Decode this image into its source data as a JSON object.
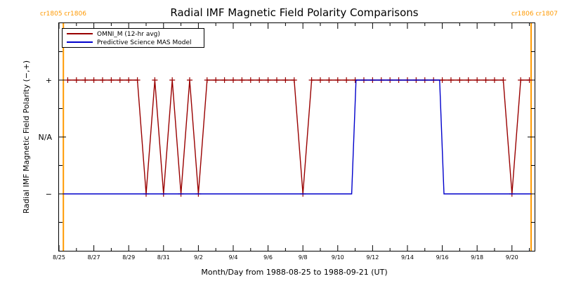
{
  "chart_data": {
    "type": "line",
    "title": "Radial IMF Magnetic Field Polarity Comparisons",
    "xlabel": "Month/Day from 1988-08-25 to 1988-09-21 (UT)",
    "ylabel": "Radial IMF Magnetic Field Polarity (−,+)",
    "x_tick_labels": [
      "8/25",
      "8/27",
      "8/29",
      "8/31",
      "9/2",
      "9/4",
      "9/6",
      "9/8",
      "9/10",
      "9/12",
      "9/14",
      "9/16",
      "9/18",
      "9/20"
    ],
    "x_tick_days": [
      0,
      2,
      4,
      6,
      8,
      10,
      12,
      14,
      16,
      18,
      20,
      22,
      24,
      26
    ],
    "x_range_days": [
      0,
      27.3
    ],
    "y_tick_labels": [
      "+",
      "N/A",
      "−"
    ],
    "y_tick_values": [
      1,
      0,
      -1
    ],
    "ylim": [
      -2,
      2
    ],
    "carrington_markers": [
      {
        "label": "cr1805 cr1806",
        "day": 0.25,
        "side": "left"
      },
      {
        "label": "cr1806 cr1807",
        "day": 27.1,
        "side": "right"
      }
    ],
    "marker_color": "#ff9900",
    "series": [
      {
        "name": "OMNI_M (12-hr avg)",
        "color": "#990000",
        "marker": "+",
        "points": [
          [
            0.5,
            1
          ],
          [
            1.0,
            1
          ],
          [
            1.5,
            1
          ],
          [
            2.0,
            1
          ],
          [
            2.5,
            1
          ],
          [
            3.0,
            1
          ],
          [
            3.5,
            1
          ],
          [
            4.0,
            1
          ],
          [
            4.5,
            1
          ],
          [
            5.0,
            -1
          ],
          [
            5.5,
            1
          ],
          [
            6.0,
            -1
          ],
          [
            6.5,
            1
          ],
          [
            7.0,
            -1
          ],
          [
            7.5,
            1
          ],
          [
            8.0,
            -1
          ],
          [
            8.5,
            1
          ],
          [
            9.0,
            1
          ],
          [
            9.5,
            1
          ],
          [
            10.0,
            1
          ],
          [
            10.5,
            1
          ],
          [
            11.0,
            1
          ],
          [
            11.5,
            1
          ],
          [
            12.0,
            1
          ],
          [
            12.5,
            1
          ],
          [
            13.0,
            1
          ],
          [
            13.5,
            1
          ],
          [
            14.0,
            -1
          ],
          [
            14.5,
            1
          ],
          [
            15.0,
            1
          ],
          [
            15.5,
            1
          ],
          [
            16.0,
            1
          ],
          [
            16.5,
            1
          ],
          [
            17.0,
            1
          ],
          [
            17.5,
            1
          ],
          [
            18.0,
            1
          ],
          [
            18.5,
            1
          ],
          [
            19.0,
            1
          ],
          [
            19.5,
            1
          ],
          [
            20.0,
            1
          ],
          [
            20.5,
            1
          ],
          [
            21.0,
            1
          ],
          [
            21.5,
            1
          ],
          [
            22.0,
            1
          ],
          [
            22.5,
            1
          ],
          [
            23.0,
            1
          ],
          [
            23.5,
            1
          ],
          [
            24.0,
            1
          ],
          [
            24.5,
            1
          ],
          [
            25.0,
            1
          ],
          [
            25.5,
            1
          ],
          [
            26.0,
            -1
          ],
          [
            26.5,
            1
          ],
          [
            27.0,
            1
          ]
        ]
      },
      {
        "name": "Predictive Science MAS Model",
        "color": "#0000cc",
        "marker": "none",
        "points": [
          [
            0.25,
            -1
          ],
          [
            16.8,
            -1
          ],
          [
            17.05,
            1
          ],
          [
            21.85,
            1
          ],
          [
            22.1,
            -1
          ],
          [
            27.1,
            -1
          ]
        ]
      }
    ],
    "legend": {
      "position": "top-left"
    },
    "grid": false
  }
}
